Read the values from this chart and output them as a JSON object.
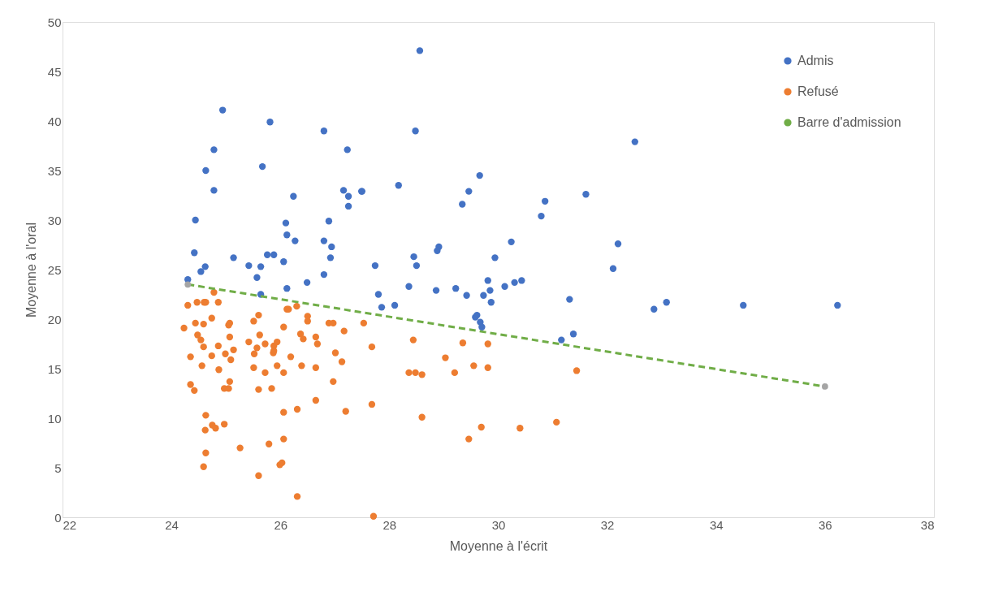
{
  "chart_data": {
    "type": "scatter",
    "xlabel": "Moyenne à l'écrit",
    "ylabel": "Moyenne à l'oral",
    "xlim": [
      22,
      38
    ],
    "xticks": [
      22,
      24,
      26,
      28,
      30,
      32,
      34,
      36,
      38
    ],
    "ylim": [
      0,
      50
    ],
    "yticks": [
      0,
      5,
      10,
      15,
      20,
      25,
      30,
      35,
      40,
      45,
      50
    ],
    "legend": "top right",
    "marker": "circle",
    "series": [
      {
        "name": "Admis",
        "type": "scatter",
        "color": "#4472c4",
        "x": [
          24.94,
          25.81,
          26.8,
          27.23,
          24.78,
          24.63,
          25.67,
          24.78,
          26.24,
          27.16,
          27.25,
          27.49,
          27.25,
          24.44,
          26.1,
          26.89,
          26.12,
          26.27,
          26.8,
          26.94,
          24.42,
          25.14,
          26.92,
          25.76,
          25.88,
          25.42,
          25.64,
          26.06,
          24.62,
          24.54,
          25.57,
          26.8,
          24.3,
          26.49,
          26.12,
          25.64,
          28.56,
          28.48,
          29.66,
          27.5,
          28.17,
          29.46,
          29.34,
          30.86,
          30.79,
          30.24,
          28.91,
          28.88,
          28.45,
          29.94,
          27.74,
          28.5,
          28.36,
          28.86,
          29.22,
          29.81,
          30.12,
          30.3,
          30.43,
          27.8,
          29.42,
          29.73,
          29.85,
          27.86,
          28.1,
          29.87,
          29.61,
          29.58,
          29.67,
          29.7,
          31.16,
          32.51,
          31.61,
          32.2,
          32.11,
          31.31,
          31.38,
          32.86,
          33.09,
          34.5,
          36.23
        ],
        "values": [
          41.1,
          39.9,
          39.0,
          37.1,
          37.1,
          35.0,
          35.4,
          33.0,
          32.4,
          33.0,
          32.4,
          32.9,
          31.4,
          30.0,
          29.7,
          29.9,
          28.5,
          27.9,
          27.9,
          27.3,
          26.7,
          26.2,
          26.2,
          26.5,
          26.5,
          25.4,
          25.3,
          25.8,
          25.3,
          24.8,
          24.2,
          24.5,
          24.0,
          23.7,
          23.1,
          22.5,
          47.1,
          39.0,
          34.5,
          32.9,
          33.5,
          32.9,
          31.6,
          31.9,
          30.4,
          27.8,
          27.3,
          26.9,
          26.3,
          26.2,
          25.4,
          25.4,
          23.3,
          22.9,
          23.1,
          23.9,
          23.3,
          23.7,
          23.9,
          22.5,
          22.4,
          22.4,
          22.9,
          21.2,
          21.4,
          21.7,
          20.4,
          20.2,
          19.7,
          19.2,
          17.9,
          37.9,
          32.6,
          27.6,
          25.1,
          22.0,
          18.5,
          21.0,
          21.7,
          21.4,
          21.4
        ]
      },
      {
        "name": "Refusé",
        "type": "scatter",
        "color": "#ed7d31",
        "x": [
          24.78,
          24.3,
          24.47,
          24.6,
          24.63,
          24.86,
          24.23,
          24.44,
          24.59,
          24.74,
          25.05,
          25.07,
          24.48,
          24.54,
          25.07,
          24.59,
          24.86,
          25.14,
          24.35,
          24.74,
          24.99,
          25.09,
          24.56,
          24.87,
          24.35,
          24.42,
          24.97,
          25.05,
          25.07,
          24.63,
          24.62,
          24.75,
          24.81,
          24.97,
          24.63,
          24.59,
          25.26,
          25.51,
          25.6,
          25.42,
          25.62,
          25.57,
          25.52,
          25.72,
          25.88,
          25.94,
          25.87,
          25.88,
          25.51,
          25.72,
          25.94,
          26.06,
          25.6,
          25.84,
          26.06,
          26.12,
          26.15,
          26.3,
          26.5,
          26.5,
          26.37,
          26.42,
          26.19,
          26.39,
          26.65,
          26.68,
          26.65,
          26.89,
          26.97,
          27.17,
          27.01,
          27.13,
          26.97,
          27.53,
          26.06,
          26.31,
          26.65,
          27.2,
          26.06,
          25.79,
          25.99,
          26.03,
          25.6,
          26.31,
          27.68,
          28.44,
          29.35,
          29.81,
          29.03,
          28.36,
          28.48,
          28.6,
          29.2,
          29.55,
          29.81,
          27.68,
          28.6,
          29.69,
          29.46,
          30.4,
          31.07,
          27.71,
          31.44
        ],
        "values": [
          22.7,
          21.4,
          21.7,
          21.7,
          21.7,
          21.7,
          19.1,
          19.6,
          19.5,
          20.1,
          19.4,
          19.6,
          18.4,
          17.9,
          18.2,
          17.2,
          17.3,
          16.9,
          16.2,
          16.3,
          16.5,
          15.9,
          15.3,
          14.9,
          13.4,
          12.8,
          13.0,
          13.0,
          13.7,
          10.3,
          8.8,
          9.3,
          9.0,
          9.4,
          6.5,
          5.1,
          7.0,
          19.8,
          20.4,
          17.7,
          18.4,
          17.1,
          16.5,
          17.5,
          17.3,
          17.7,
          16.6,
          16.8,
          15.1,
          14.6,
          15.3,
          14.6,
          12.9,
          13.0,
          19.2,
          21.0,
          21.0,
          21.3,
          20.3,
          19.8,
          18.5,
          18.0,
          16.2,
          15.3,
          18.2,
          17.5,
          15.1,
          19.6,
          19.6,
          18.8,
          16.6,
          15.7,
          13.7,
          19.6,
          10.6,
          10.9,
          11.8,
          10.7,
          7.9,
          7.4,
          5.3,
          5.5,
          4.2,
          2.1,
          17.2,
          17.9,
          17.6,
          17.5,
          16.1,
          14.6,
          14.6,
          14.4,
          14.6,
          15.3,
          15.1,
          11.4,
          10.1,
          9.1,
          7.9,
          9.0,
          9.6,
          0.1,
          14.8
        ]
      },
      {
        "name": "Barre d'admission",
        "type": "line",
        "color": "#70ad47",
        "colors": [
          "#a5a5a5",
          "#a5a5a5"
        ],
        "line_style": "dashed",
        "x": [
          24.3,
          36.0
        ],
        "values": [
          23.5,
          13.2
        ]
      }
    ]
  }
}
